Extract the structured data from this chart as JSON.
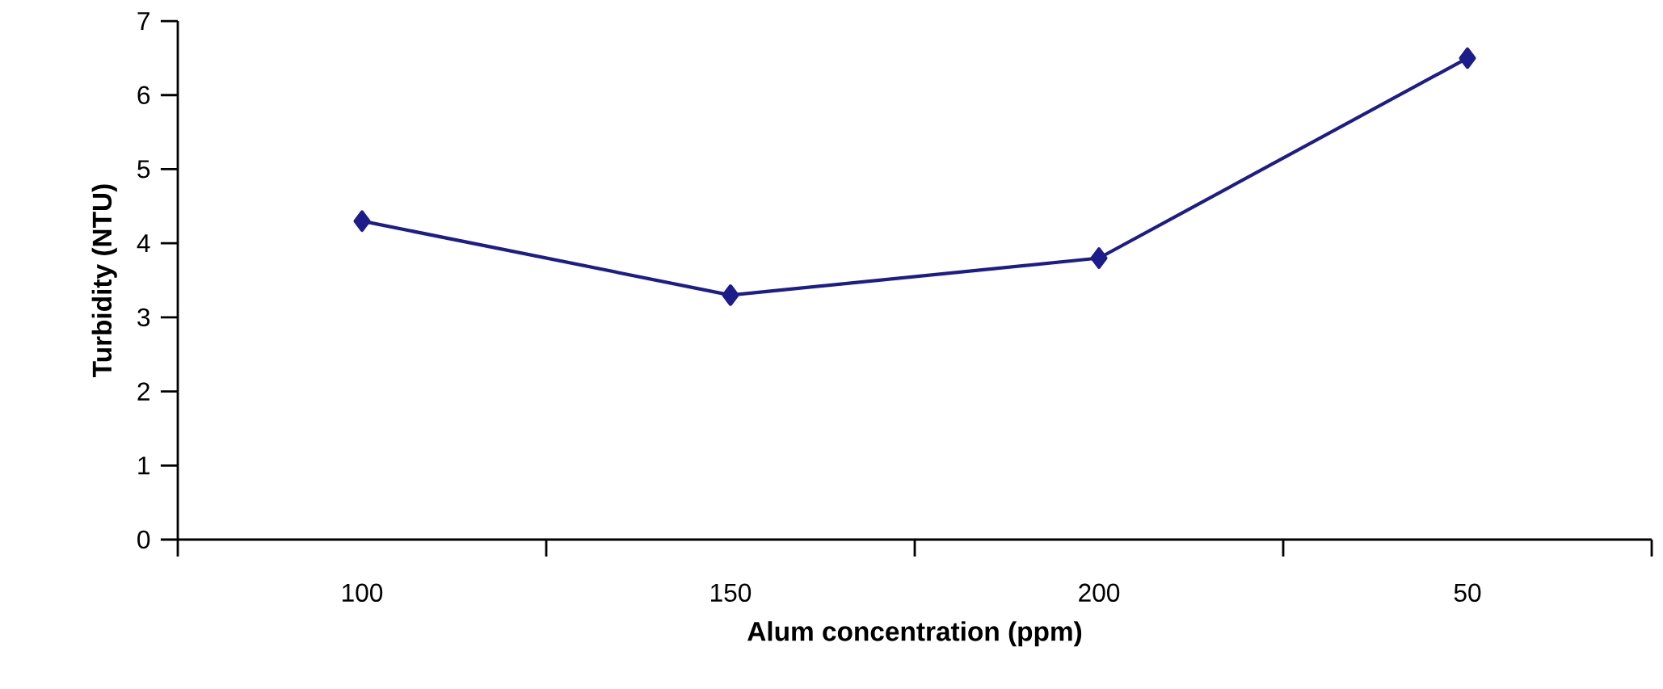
{
  "chart_data": {
    "type": "line",
    "xlabel": "Alum concentration (ppm)",
    "ylabel": "Turbidity (NTU)",
    "categories": [
      "100",
      "150",
      "200",
      "50"
    ],
    "series": [
      {
        "color": "#1c1c8a",
        "values": [
          4.3,
          3.3,
          3.8,
          6.5
        ]
      }
    ],
    "ylim": [
      0,
      7
    ],
    "yticks": [
      0,
      1,
      2,
      3,
      4,
      5,
      6,
      7
    ],
    "marker": "diamond"
  }
}
